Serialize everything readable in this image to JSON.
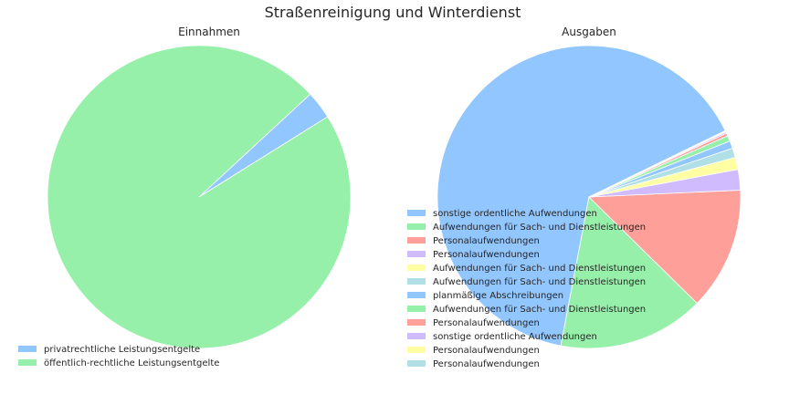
{
  "chart_data": {
    "title": "Straßenreinigung und Winterdienst",
    "charts": [
      {
        "type": "pie",
        "title": "Einnahmen",
        "legend_position": "lower-left",
        "slices": [
          {
            "label": "privatrechtliche Leistungsentgelte",
            "value": 3.0,
            "color": "#92c6ff"
          },
          {
            "label": "öffentlich-rechtliche Leistungsentgelte",
            "value": 97.0,
            "color": "#97f0aa"
          }
        ]
      },
      {
        "type": "pie",
        "title": "Ausgaben",
        "legend_position": "center-left",
        "slices": [
          {
            "label": "sonstige ordentliche Aufwendungen",
            "value": 64.8,
            "color": "#92c6ff"
          },
          {
            "label": "Aufwendungen für Sach- und Dienstleistungen",
            "value": 15.6,
            "color": "#97f0aa"
          },
          {
            "label": "Personalaufwendungen",
            "value": 13.1,
            "color": "#ff9f9a"
          },
          {
            "label": "Personalaufwendungen",
            "value": 2.2,
            "color": "#d0bbff"
          },
          {
            "label": "Aufwendungen für Sach- und Dienstleistungen",
            "value": 1.3,
            "color": "#fffea3"
          },
          {
            "label": "Aufwendungen für Sach- und Dienstleistungen",
            "value": 1.0,
            "color": "#b0e0e6"
          },
          {
            "label": "planmäßige Abschreibungen",
            "value": 0.8,
            "color": "#92c6ff"
          },
          {
            "label": "Aufwendungen für Sach- und Dienstleistungen",
            "value": 0.6,
            "color": "#97f0aa"
          },
          {
            "label": "Personalaufwendungen",
            "value": 0.3,
            "color": "#ff9f9a"
          },
          {
            "label": "sonstige ordentliche Aufwendungen",
            "value": 0.15,
            "color": "#d0bbff"
          },
          {
            "label": "Personalaufwendungen",
            "value": 0.1,
            "color": "#fffea3"
          },
          {
            "label": "Personalaufwendungen",
            "value": 0.05,
            "color": "#b0e0e6"
          }
        ]
      }
    ]
  }
}
